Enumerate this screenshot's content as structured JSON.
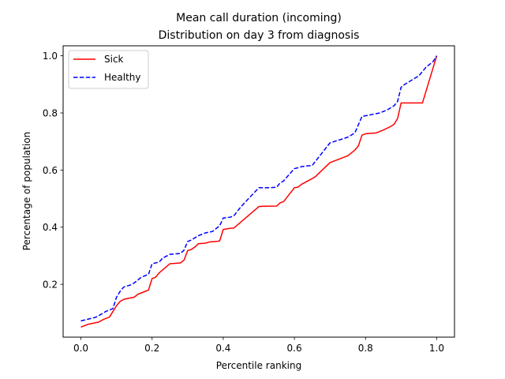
{
  "chart_data": {
    "type": "line",
    "title": "Mean call duration (incoming)",
    "subtitle": "Distribution on day 3 from diagnosis",
    "xlabel": "Percentile ranking",
    "ylabel": "Percentage of population",
    "xlim": [
      -0.05,
      1.05
    ],
    "ylim": [
      0.015,
      1.035
    ],
    "xticks": [
      0.0,
      0.2,
      0.4,
      0.6,
      0.8,
      1.0
    ],
    "xtick_labels": [
      "0.0",
      "0.2",
      "0.4",
      "0.6",
      "0.8",
      "1.0"
    ],
    "yticks": [
      0.2,
      0.4,
      0.6,
      0.8,
      1.0
    ],
    "ytick_labels": [
      "0.2",
      "0.4",
      "0.6",
      "0.8",
      "1.0"
    ],
    "grid": false,
    "legend_position": "top-left",
    "series": [
      {
        "name": "Sick",
        "color": "#ff0000",
        "linestyle": "solid",
        "x": [
          0.0,
          0.02,
          0.05,
          0.065,
          0.08,
          0.09,
          0.1,
          0.11,
          0.12,
          0.13,
          0.15,
          0.16,
          0.18,
          0.19,
          0.2,
          0.21,
          0.22,
          0.25,
          0.28,
          0.29,
          0.3,
          0.31,
          0.32,
          0.33,
          0.35,
          0.36,
          0.38,
          0.39,
          0.4,
          0.42,
          0.43,
          0.5,
          0.51,
          0.55,
          0.56,
          0.57,
          0.6,
          0.61,
          0.62,
          0.65,
          0.66,
          0.7,
          0.75,
          0.77,
          0.78,
          0.79,
          0.8,
          0.83,
          0.85,
          0.87,
          0.88,
          0.89,
          0.9,
          0.95,
          0.96,
          1.0
        ],
        "y": [
          0.05,
          0.06,
          0.068,
          0.078,
          0.085,
          0.105,
          0.125,
          0.14,
          0.147,
          0.15,
          0.155,
          0.165,
          0.175,
          0.18,
          0.22,
          0.225,
          0.24,
          0.272,
          0.275,
          0.285,
          0.318,
          0.322,
          0.33,
          0.342,
          0.344,
          0.348,
          0.35,
          0.352,
          0.392,
          0.396,
          0.397,
          0.472,
          0.473,
          0.474,
          0.485,
          0.49,
          0.538,
          0.54,
          0.55,
          0.57,
          0.578,
          0.626,
          0.65,
          0.67,
          0.685,
          0.722,
          0.727,
          0.73,
          0.74,
          0.752,
          0.76,
          0.78,
          0.835,
          0.835,
          0.835,
          1.0
        ]
      },
      {
        "name": "Healthy",
        "color": "#0000ff",
        "linestyle": "dashed",
        "x": [
          0.0,
          0.02,
          0.04,
          0.05,
          0.07,
          0.08,
          0.09,
          0.1,
          0.11,
          0.12,
          0.14,
          0.15,
          0.17,
          0.19,
          0.2,
          0.22,
          0.23,
          0.25,
          0.28,
          0.29,
          0.3,
          0.31,
          0.33,
          0.35,
          0.37,
          0.39,
          0.4,
          0.42,
          0.43,
          0.45,
          0.5,
          0.53,
          0.55,
          0.56,
          0.57,
          0.58,
          0.6,
          0.61,
          0.62,
          0.64,
          0.65,
          0.7,
          0.75,
          0.77,
          0.79,
          0.8,
          0.82,
          0.84,
          0.86,
          0.88,
          0.89,
          0.9,
          0.91,
          0.95,
          0.97,
          0.99,
          1.0
        ],
        "y": [
          0.072,
          0.078,
          0.084,
          0.09,
          0.105,
          0.11,
          0.115,
          0.155,
          0.175,
          0.19,
          0.198,
          0.205,
          0.225,
          0.235,
          0.272,
          0.278,
          0.292,
          0.305,
          0.308,
          0.32,
          0.35,
          0.355,
          0.37,
          0.38,
          0.385,
          0.405,
          0.432,
          0.435,
          0.44,
          0.472,
          0.538,
          0.538,
          0.54,
          0.555,
          0.562,
          0.577,
          0.605,
          0.608,
          0.612,
          0.615,
          0.616,
          0.695,
          0.715,
          0.73,
          0.788,
          0.79,
          0.795,
          0.8,
          0.81,
          0.825,
          0.84,
          0.89,
          0.9,
          0.93,
          0.96,
          0.98,
          1.0
        ]
      }
    ]
  }
}
